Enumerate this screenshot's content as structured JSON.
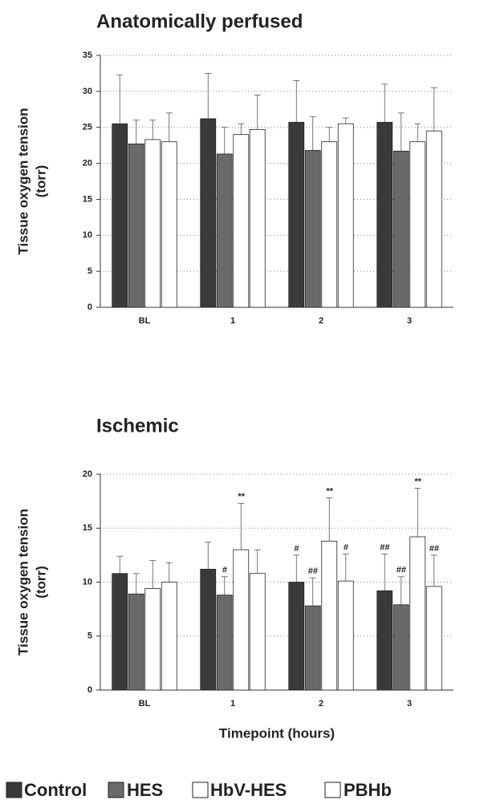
{
  "chart_data": [
    {
      "type": "bar",
      "title": "Anatomically perfused",
      "y_label": [
        "Tissue oxygen tension",
        "(torr)"
      ],
      "categories": [
        "BL",
        "1",
        "2",
        "3"
      ],
      "ylim": [
        0,
        35
      ],
      "yticks": [
        0,
        5,
        10,
        15,
        20,
        25,
        30,
        35
      ],
      "grid": true,
      "series": [
        {
          "color": "#3a3a3a",
          "values": [
            25.5,
            26.2,
            25.7,
            25.7
          ],
          "errors": [
            6.8,
            6.3,
            5.8,
            5.3
          ]
        },
        {
          "color": "#6a6a6a",
          "values": [
            22.7,
            21.3,
            21.8,
            21.7
          ],
          "errors": [
            3.3,
            3.7,
            4.7,
            5.3
          ]
        },
        {
          "color": "#ffffff",
          "values": [
            23.3,
            24.0,
            23.0,
            23.0
          ],
          "errors": [
            2.7,
            1.5,
            2.0,
            2.5
          ]
        },
        {
          "color": "#ffffff",
          "values": [
            23.0,
            24.7,
            25.5,
            24.5
          ],
          "errors": [
            4.0,
            4.8,
            0.8,
            6.0
          ]
        }
      ]
    },
    {
      "type": "bar",
      "title": "Ischemic",
      "y_label": [
        "Tissue oxygen tension",
        "(torr)"
      ],
      "x_label": "Timepoint (hours)",
      "categories": [
        "BL",
        "1",
        "2",
        "3"
      ],
      "ylim": [
        0,
        20
      ],
      "yticks": [
        0,
        5,
        10,
        15,
        20
      ],
      "grid": true,
      "series": [
        {
          "name": "Control",
          "color": "#3a3a3a",
          "values": [
            10.8,
            11.2,
            10.0,
            9.2
          ],
          "errors": [
            1.6,
            2.5,
            2.5,
            3.4
          ],
          "annotations": [
            null,
            null,
            "#",
            "##"
          ]
        },
        {
          "name": "HES",
          "color": "#6a6a6a",
          "values": [
            8.9,
            8.8,
            7.8,
            7.9
          ],
          "errors": [
            1.9,
            1.7,
            2.6,
            2.6
          ],
          "annotations": [
            null,
            "#",
            "##",
            "##"
          ]
        },
        {
          "name": "HbV-HES",
          "color": "#ffffff",
          "values": [
            9.4,
            13.0,
            13.8,
            14.2
          ],
          "errors": [
            2.6,
            4.3,
            4.0,
            4.5
          ],
          "annotations": [
            null,
            "**",
            "**",
            "**"
          ]
        },
        {
          "name": "PBHb",
          "color": "#ffffff",
          "values": [
            10.0,
            10.8,
            10.1,
            9.6
          ],
          "errors": [
            1.8,
            2.2,
            2.5,
            2.9
          ],
          "annotations": [
            null,
            null,
            "#",
            "##"
          ]
        }
      ]
    }
  ]
}
